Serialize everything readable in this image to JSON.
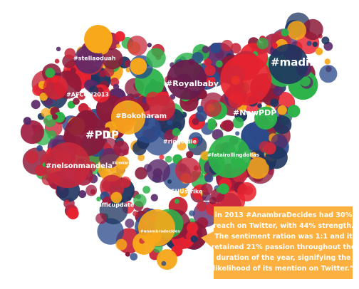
{
  "map": {
    "hashtags": [
      "#stellaoduah",
      "#madiba",
      "#Royalbaby",
      "#AFCON2013",
      "#Bokoharam",
      "#NewPDP",
      "#PDP",
      "#ripgoldie",
      "#fatairollingdollas",
      "#nelsonmandela",
      "#kimkardashian",
      "#ASUUstrike",
      "#trafficupdate",
      "#anambradecides"
    ]
  },
  "callout": {
    "lines": [
      "in 2013 #AnambraDecides had 30%",
      "reach on Twitter, with 44% strength.",
      "The sentiment ration was 1:1 and it",
      "retained 21% passion throughout the",
      "duration of the year, signifying the",
      "likelihood of its mention on Twitter.”"
    ]
  }
}
